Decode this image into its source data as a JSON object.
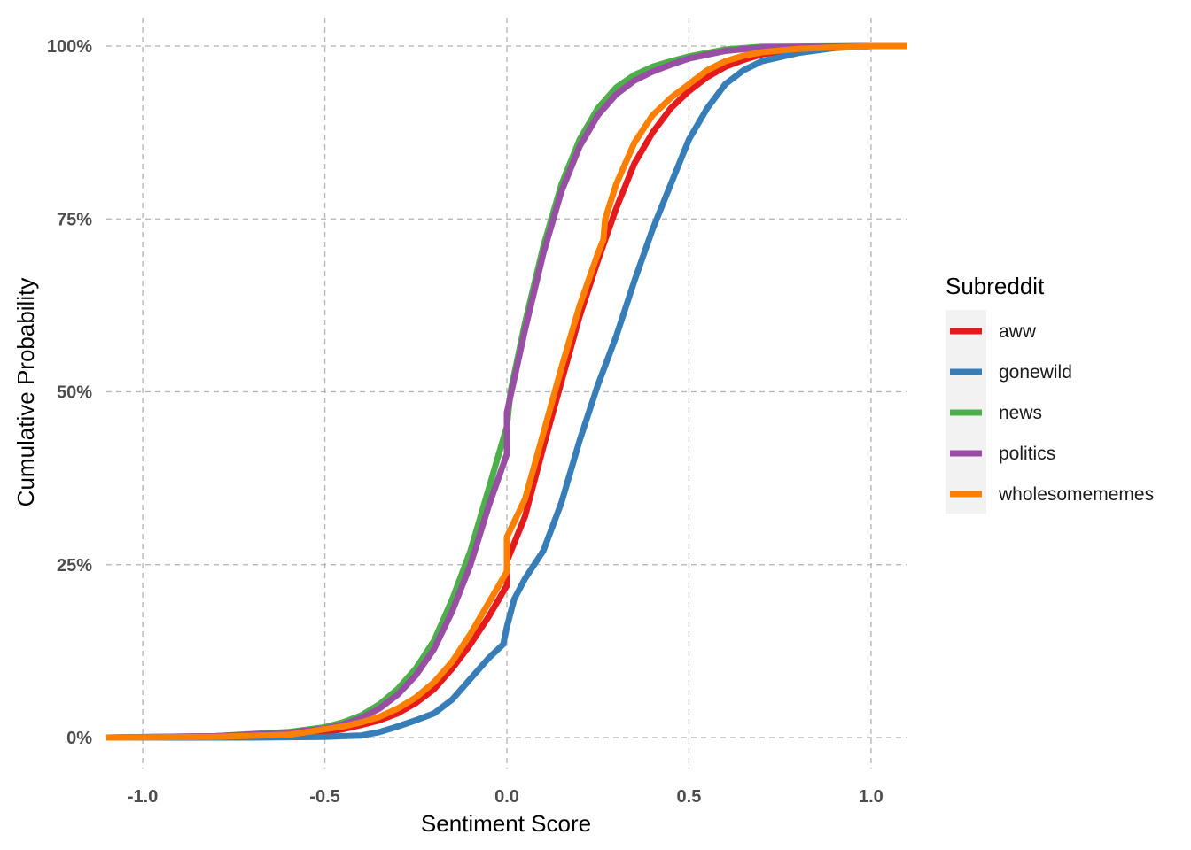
{
  "chart_data": {
    "type": "line",
    "title": "",
    "xlabel": "Sentiment Score",
    "ylabel": "Cumulative Probability",
    "xlim": [
      -1.1,
      1.1
    ],
    "ylim": [
      -0.045,
      1.0
    ],
    "x_ticks": [
      -1.0,
      -0.5,
      0.0,
      0.5,
      1.0
    ],
    "x_tick_labels": [
      "-1.0",
      "-0.5",
      "0.0",
      "0.5",
      "1.0"
    ],
    "y_ticks": [
      0,
      0.25,
      0.5,
      0.75,
      1.0
    ],
    "y_tick_labels": [
      "0%",
      "25%",
      "50%",
      "75%",
      "100%"
    ],
    "grid": true,
    "legend": {
      "title": "Subreddit",
      "position": "right"
    },
    "series": [
      {
        "name": "aww",
        "color": "#E41A1C",
        "points": [
          [
            -1.1,
            0
          ],
          [
            -0.8,
            0.001
          ],
          [
            -0.6,
            0.003
          ],
          [
            -0.5,
            0.008
          ],
          [
            -0.45,
            0.012
          ],
          [
            -0.4,
            0.018
          ],
          [
            -0.35,
            0.025
          ],
          [
            -0.3,
            0.035
          ],
          [
            -0.25,
            0.05
          ],
          [
            -0.2,
            0.07
          ],
          [
            -0.15,
            0.1
          ],
          [
            -0.1,
            0.135
          ],
          [
            -0.05,
            0.175
          ],
          [
            0,
            0.22
          ],
          [
            0,
            0.255
          ],
          [
            0.05,
            0.32
          ],
          [
            0.1,
            0.42
          ],
          [
            0.15,
            0.515
          ],
          [
            0.2,
            0.61
          ],
          [
            0.25,
            0.69
          ],
          [
            0.3,
            0.765
          ],
          [
            0.35,
            0.83
          ],
          [
            0.4,
            0.875
          ],
          [
            0.45,
            0.91
          ],
          [
            0.5,
            0.935
          ],
          [
            0.55,
            0.955
          ],
          [
            0.6,
            0.97
          ],
          [
            0.65,
            0.98
          ],
          [
            0.7,
            0.988
          ],
          [
            0.8,
            0.996
          ],
          [
            1.0,
            1.0
          ],
          [
            1.1,
            1.0
          ]
        ]
      },
      {
        "name": "gonewild",
        "color": "#377EB8",
        "points": [
          [
            -1.1,
            0
          ],
          [
            -0.7,
            0
          ],
          [
            -0.5,
            0.001
          ],
          [
            -0.4,
            0.003
          ],
          [
            -0.35,
            0.008
          ],
          [
            -0.3,
            0.016
          ],
          [
            -0.25,
            0.025
          ],
          [
            -0.2,
            0.035
          ],
          [
            -0.15,
            0.055
          ],
          [
            -0.1,
            0.085
          ],
          [
            -0.05,
            0.115
          ],
          [
            -0.01,
            0.135
          ],
          [
            0,
            0.16
          ],
          [
            0.02,
            0.2
          ],
          [
            0.05,
            0.23
          ],
          [
            0.1,
            0.27
          ],
          [
            0.15,
            0.34
          ],
          [
            0.2,
            0.43
          ],
          [
            0.25,
            0.51
          ],
          [
            0.3,
            0.58
          ],
          [
            0.35,
            0.66
          ],
          [
            0.4,
            0.735
          ],
          [
            0.45,
            0.8
          ],
          [
            0.5,
            0.865
          ],
          [
            0.55,
            0.91
          ],
          [
            0.6,
            0.945
          ],
          [
            0.65,
            0.965
          ],
          [
            0.7,
            0.978
          ],
          [
            0.8,
            0.99
          ],
          [
            0.9,
            0.997
          ],
          [
            1.0,
            1.0
          ],
          [
            1.1,
            1.0
          ]
        ]
      },
      {
        "name": "news",
        "color": "#4DAF4A",
        "points": [
          [
            -1.1,
            0
          ],
          [
            -0.8,
            0.002
          ],
          [
            -0.6,
            0.008
          ],
          [
            -0.5,
            0.015
          ],
          [
            -0.45,
            0.022
          ],
          [
            -0.4,
            0.032
          ],
          [
            -0.35,
            0.048
          ],
          [
            -0.3,
            0.07
          ],
          [
            -0.25,
            0.1
          ],
          [
            -0.2,
            0.14
          ],
          [
            -0.15,
            0.2
          ],
          [
            -0.1,
            0.27
          ],
          [
            -0.05,
            0.36
          ],
          [
            0,
            0.45
          ],
          [
            0.01,
            0.5
          ],
          [
            0.05,
            0.6
          ],
          [
            0.1,
            0.71
          ],
          [
            0.15,
            0.8
          ],
          [
            0.2,
            0.865
          ],
          [
            0.25,
            0.91
          ],
          [
            0.3,
            0.94
          ],
          [
            0.35,
            0.958
          ],
          [
            0.4,
            0.97
          ],
          [
            0.45,
            0.978
          ],
          [
            0.5,
            0.985
          ],
          [
            0.6,
            0.995
          ],
          [
            0.7,
            0.999
          ],
          [
            1.0,
            1.0
          ],
          [
            1.1,
            1.0
          ]
        ]
      },
      {
        "name": "politics",
        "color": "#984EA3",
        "points": [
          [
            -1.1,
            0
          ],
          [
            -0.8,
            0.002
          ],
          [
            -0.6,
            0.007
          ],
          [
            -0.5,
            0.013
          ],
          [
            -0.45,
            0.019
          ],
          [
            -0.4,
            0.028
          ],
          [
            -0.35,
            0.042
          ],
          [
            -0.3,
            0.062
          ],
          [
            -0.25,
            0.09
          ],
          [
            -0.2,
            0.128
          ],
          [
            -0.15,
            0.183
          ],
          [
            -0.1,
            0.25
          ],
          [
            -0.05,
            0.335
          ],
          [
            0,
            0.41
          ],
          [
            0,
            0.47
          ],
          [
            0.05,
            0.59
          ],
          [
            0.1,
            0.7
          ],
          [
            0.15,
            0.79
          ],
          [
            0.2,
            0.855
          ],
          [
            0.25,
            0.9
          ],
          [
            0.3,
            0.93
          ],
          [
            0.35,
            0.95
          ],
          [
            0.4,
            0.963
          ],
          [
            0.45,
            0.973
          ],
          [
            0.5,
            0.982
          ],
          [
            0.6,
            0.993
          ],
          [
            0.7,
            0.998
          ],
          [
            1.0,
            1.0
          ],
          [
            1.1,
            1.0
          ]
        ]
      },
      {
        "name": "wholesomememes",
        "color": "#FF7F00",
        "points": [
          [
            -1.1,
            0
          ],
          [
            -0.8,
            0.001
          ],
          [
            -0.6,
            0.004
          ],
          [
            -0.5,
            0.012
          ],
          [
            -0.45,
            0.016
          ],
          [
            -0.4,
            0.022
          ],
          [
            -0.35,
            0.03
          ],
          [
            -0.3,
            0.042
          ],
          [
            -0.25,
            0.058
          ],
          [
            -0.2,
            0.08
          ],
          [
            -0.15,
            0.11
          ],
          [
            -0.1,
            0.15
          ],
          [
            -0.05,
            0.195
          ],
          [
            0,
            0.24
          ],
          [
            0,
            0.29
          ],
          [
            0.05,
            0.345
          ],
          [
            0.1,
            0.44
          ],
          [
            0.15,
            0.535
          ],
          [
            0.2,
            0.625
          ],
          [
            0.25,
            0.7
          ],
          [
            0.265,
            0.72
          ],
          [
            0.27,
            0.75
          ],
          [
            0.3,
            0.8
          ],
          [
            0.35,
            0.86
          ],
          [
            0.4,
            0.9
          ],
          [
            0.45,
            0.925
          ],
          [
            0.5,
            0.945
          ],
          [
            0.55,
            0.965
          ],
          [
            0.6,
            0.978
          ],
          [
            0.65,
            0.986
          ],
          [
            0.7,
            0.991
          ],
          [
            0.8,
            0.996
          ],
          [
            1.0,
            1.0
          ],
          [
            1.1,
            1.0
          ]
        ]
      }
    ]
  }
}
